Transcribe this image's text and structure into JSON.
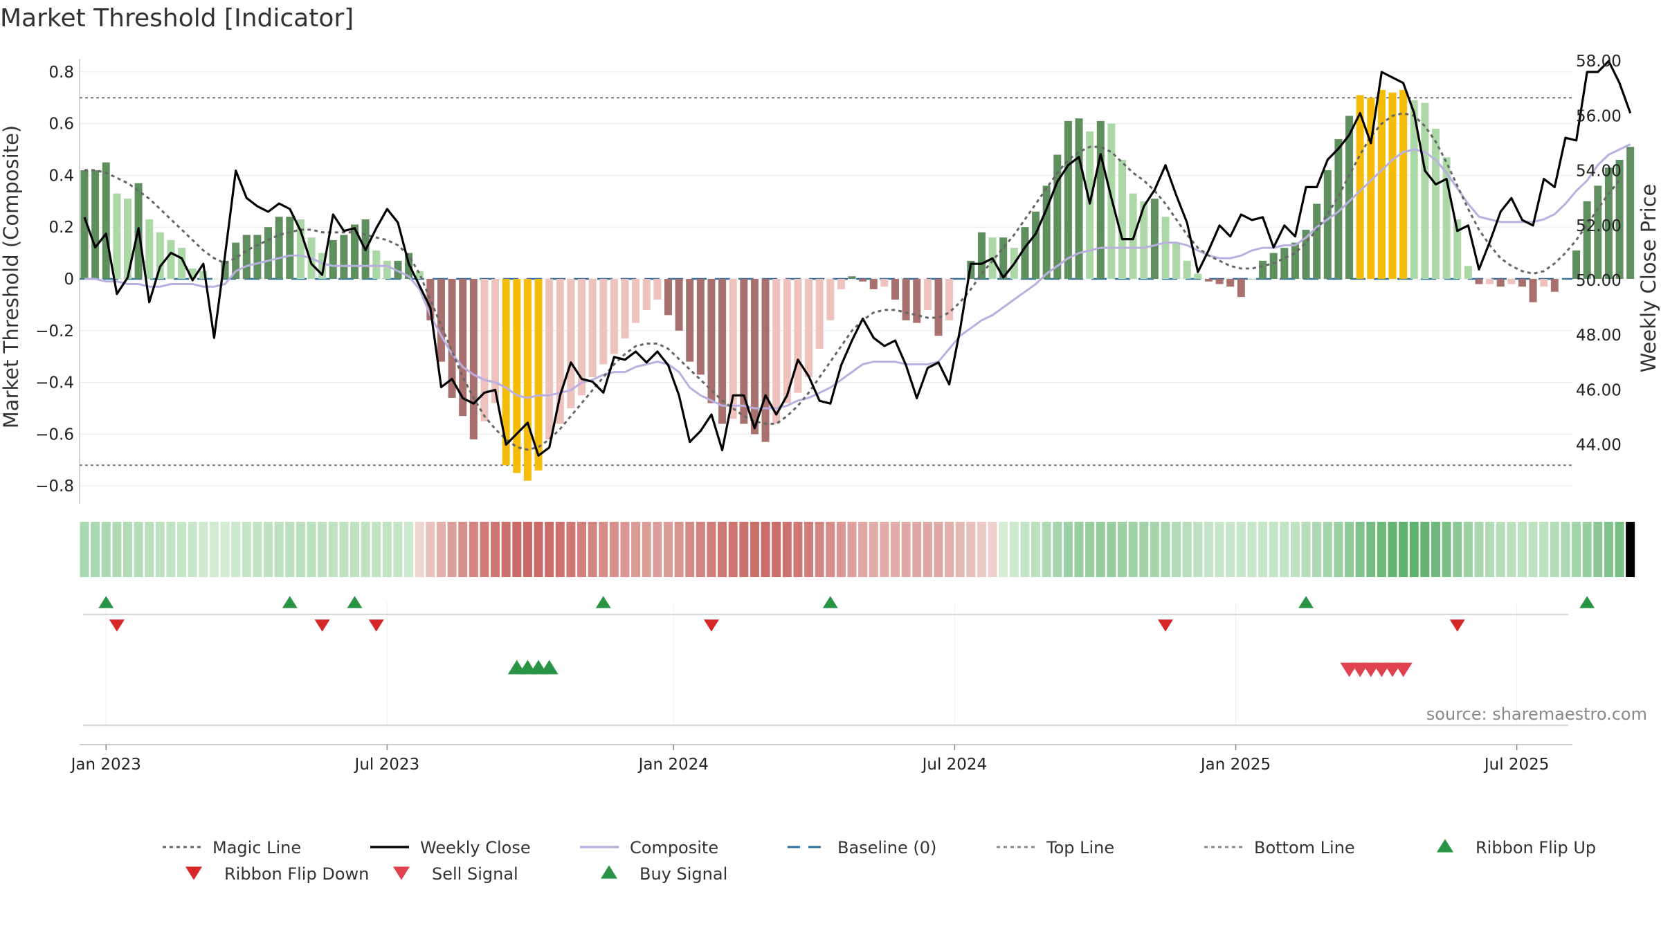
{
  "title": "Market Threshold [Indicator]",
  "source": "source: sharemaestro.com",
  "chart_data": {
    "type": "bar",
    "ylabel_left": "Market Threshold (Composite)",
    "ylabel_right": "Weekly Close Price",
    "ylim_left": [
      -0.86,
      0.86
    ],
    "ylim_right": [
      42.8,
      59.2
    ],
    "left_ticks": [
      0.8,
      0.6,
      0.4,
      0.2,
      0,
      -0.2,
      -0.4,
      -0.6,
      -0.8
    ],
    "left_tick_labels": [
      "0.8",
      "0.6",
      "0.4",
      "0.2",
      "0",
      "−0.2",
      "−0.4",
      "−0.6",
      "−0.8"
    ],
    "right_ticks": [
      58,
      56,
      54,
      52,
      50,
      48,
      46,
      44
    ],
    "right_tick_labels": [
      "58.00",
      "56.00",
      "54.00",
      "52.00",
      "50.00",
      "48.00",
      "46.00",
      "44.00"
    ],
    "x_ticks": [
      {
        "label": "Jan 2023",
        "week": 2
      },
      {
        "label": "Jul 2023",
        "week": 28
      },
      {
        "label": "Jan 2024",
        "week": 54.5
      },
      {
        "label": "Jul 2024",
        "week": 80.5
      },
      {
        "label": "Jan 2025",
        "week": 106.5
      },
      {
        "label": "Jul 2025",
        "week": 132.5
      }
    ],
    "top_line": 0.7,
    "bottom_line": -0.72,
    "composite_bars": [
      0.42,
      0.42,
      0.45,
      0.33,
      0.31,
      0.37,
      0.23,
      0.18,
      0.15,
      0.12,
      0.04,
      0.03,
      0,
      0.07,
      0.14,
      0.17,
      0.17,
      0.2,
      0.24,
      0.24,
      0.23,
      0.16,
      0.1,
      0.15,
      0.17,
      0.21,
      0.23,
      0.11,
      0.07,
      0.07,
      0.1,
      0.03,
      -0.16,
      -0.32,
      -0.46,
      -0.53,
      -0.62,
      -0.55,
      -0.48,
      -0.72,
      -0.75,
      -0.78,
      -0.74,
      -0.62,
      -0.56,
      -0.5,
      -0.45,
      -0.38,
      -0.33,
      -0.29,
      -0.23,
      -0.17,
      -0.12,
      -0.08,
      -0.14,
      -0.2,
      -0.32,
      -0.37,
      -0.48,
      -0.56,
      -0.54,
      -0.56,
      -0.6,
      -0.63,
      -0.56,
      -0.48,
      -0.44,
      -0.38,
      -0.27,
      -0.16,
      -0.04,
      0.01,
      -0.01,
      -0.04,
      -0.03,
      -0.08,
      -0.16,
      -0.17,
      -0.12,
      -0.22,
      -0.16,
      0,
      0.07,
      0.18,
      0.16,
      0.16,
      0.12,
      0.2,
      0.26,
      0.36,
      0.48,
      0.61,
      0.62,
      0.57,
      0.61,
      0.6,
      0.46,
      0.33,
      0.3,
      0.31,
      0.24,
      0.14,
      0.07,
      0.02,
      -0.01,
      -0.02,
      -0.03,
      -0.07,
      0,
      0.07,
      0.1,
      0.12,
      0.14,
      0.19,
      0.29,
      0.42,
      0.54,
      0.63,
      0.71,
      0.7,
      0.73,
      0.72,
      0.73,
      0.69,
      0.68,
      0.58,
      0.47,
      0.23,
      0.05,
      -0.02,
      -0.02,
      -0.03,
      -0.02,
      -0.03,
      -0.09,
      -0.03,
      -0.05,
      0,
      0.11,
      0.3,
      0.36,
      0.43,
      0.46,
      0.51
    ],
    "weekly_close": [
      52.3,
      51.2,
      51.7,
      49.5,
      50.1,
      51.9,
      49.2,
      50.5,
      51.0,
      50.8,
      50.0,
      50.6,
      47.9,
      50.9,
      54.0,
      53.0,
      52.7,
      52.5,
      52.8,
      52.6,
      51.8,
      50.6,
      50.2,
      52.4,
      51.8,
      51.9,
      51.1,
      51.9,
      52.6,
      52.1,
      50.6,
      49.8,
      49.0,
      46.1,
      46.4,
      45.7,
      45.5,
      45.9,
      46.0,
      44.0,
      44.4,
      44.8,
      43.6,
      43.9,
      45.8,
      47.0,
      46.4,
      46.3,
      45.9,
      47.2,
      47.1,
      47.4,
      47.0,
      47.4,
      46.9,
      45.8,
      44.1,
      44.5,
      45.1,
      43.8,
      45.8,
      45.8,
      44.6,
      45.8,
      45.1,
      45.8,
      47.1,
      46.5,
      45.6,
      45.5,
      46.9,
      47.8,
      48.6,
      47.9,
      47.6,
      47.8,
      46.9,
      45.7,
      46.8,
      47.0,
      46.2,
      48.2,
      50.6,
      50.6,
      50.8,
      50.1,
      50.6,
      51.2,
      51.7,
      52.6,
      53.6,
      54.2,
      54.5,
      52.8,
      54.6,
      53.0,
      51.5,
      51.5,
      52.7,
      53.3,
      54.2,
      53.1,
      52.1,
      50.3,
      51.1,
      52.0,
      51.6,
      52.4,
      52.2,
      52.3,
      51.2,
      52.0,
      51.6,
      53.4,
      53.4,
      54.4,
      54.8,
      55.3,
      56.1,
      55.0,
      57.6,
      57.4,
      57.2,
      56.1,
      54.0,
      53.5,
      53.7,
      51.8,
      52.0,
      50.4,
      51.4,
      52.5,
      53.0,
      52.2,
      52.0,
      53.7,
      53.4,
      55.2,
      55.1,
      57.6,
      57.6,
      58.0,
      57.2,
      56.1
    ],
    "composite_line": [
      0,
      0,
      -0.01,
      -0.01,
      -0.02,
      -0.02,
      -0.03,
      -0.03,
      -0.02,
      -0.02,
      -0.02,
      -0.03,
      -0.03,
      -0.02,
      0.03,
      0.05,
      0.06,
      0.07,
      0.08,
      0.09,
      0.09,
      0.08,
      0.06,
      0.05,
      0.05,
      0.05,
      0.05,
      0.05,
      0.05,
      0.03,
      0.01,
      -0.04,
      -0.14,
      -0.22,
      -0.29,
      -0.34,
      -0.37,
      -0.39,
      -0.4,
      -0.42,
      -0.45,
      -0.46,
      -0.45,
      -0.45,
      -0.44,
      -0.43,
      -0.4,
      -0.39,
      -0.37,
      -0.36,
      -0.36,
      -0.34,
      -0.33,
      -0.32,
      -0.33,
      -0.36,
      -0.42,
      -0.45,
      -0.47,
      -0.49,
      -0.49,
      -0.49,
      -0.5,
      -0.5,
      -0.5,
      -0.49,
      -0.47,
      -0.46,
      -0.44,
      -0.42,
      -0.39,
      -0.36,
      -0.33,
      -0.32,
      -0.32,
      -0.32,
      -0.33,
      -0.33,
      -0.33,
      -0.32,
      -0.27,
      -0.22,
      -0.19,
      -0.16,
      -0.14,
      -0.11,
      -0.08,
      -0.05,
      -0.02,
      0.02,
      0.05,
      0.08,
      0.1,
      0.11,
      0.12,
      0.12,
      0.12,
      0.12,
      0.12,
      0.13,
      0.14,
      0.14,
      0.13,
      0.11,
      0.09,
      0.08,
      0.08,
      0.09,
      0.11,
      0.12,
      0.12,
      0.13,
      0.13,
      0.16,
      0.2,
      0.23,
      0.26,
      0.3,
      0.34,
      0.38,
      0.42,
      0.46,
      0.49,
      0.5,
      0.49,
      0.46,
      0.41,
      0.35,
      0.29,
      0.24,
      0.23,
      0.22,
      0.22,
      0.22,
      0.22,
      0.23,
      0.25,
      0.29,
      0.34,
      0.38,
      0.44,
      0.48,
      0.5,
      0.52
    ],
    "magic_line": [
      0.42,
      0.42,
      0.41,
      0.39,
      0.37,
      0.34,
      0.31,
      0.27,
      0.23,
      0.19,
      0.15,
      0.11,
      0.08,
      0.06,
      0.08,
      0.11,
      0.13,
      0.15,
      0.17,
      0.18,
      0.19,
      0.19,
      0.18,
      0.18,
      0.18,
      0.18,
      0.17,
      0.16,
      0.15,
      0.13,
      0.09,
      0.02,
      -0.08,
      -0.18,
      -0.28,
      -0.38,
      -0.46,
      -0.53,
      -0.58,
      -0.62,
      -0.65,
      -0.66,
      -0.65,
      -0.62,
      -0.58,
      -0.53,
      -0.48,
      -0.43,
      -0.38,
      -0.33,
      -0.29,
      -0.26,
      -0.25,
      -0.25,
      -0.27,
      -0.31,
      -0.35,
      -0.39,
      -0.43,
      -0.47,
      -0.5,
      -0.53,
      -0.55,
      -0.56,
      -0.56,
      -0.53,
      -0.49,
      -0.44,
      -0.38,
      -0.32,
      -0.26,
      -0.2,
      -0.16,
      -0.13,
      -0.12,
      -0.12,
      -0.13,
      -0.14,
      -0.15,
      -0.15,
      -0.13,
      -0.09,
      -0.04,
      0.02,
      0.07,
      0.12,
      0.17,
      0.23,
      0.29,
      0.35,
      0.41,
      0.46,
      0.49,
      0.51,
      0.51,
      0.49,
      0.45,
      0.41,
      0.38,
      0.34,
      0.29,
      0.23,
      0.17,
      0.12,
      0.09,
      0.07,
      0.05,
      0.04,
      0.04,
      0.05,
      0.06,
      0.08,
      0.1,
      0.14,
      0.19,
      0.25,
      0.32,
      0.4,
      0.48,
      0.55,
      0.6,
      0.63,
      0.64,
      0.63,
      0.59,
      0.53,
      0.45,
      0.36,
      0.27,
      0.19,
      0.13,
      0.08,
      0.05,
      0.03,
      0.02,
      0.03,
      0.06,
      0.1,
      0.15,
      0.21,
      0.27,
      0.33,
      0.38
    ],
    "ribbon_flip_up_weeks": [
      2,
      19,
      25,
      48,
      69,
      113,
      139
    ],
    "ribbon_flip_down_weeks": [
      3,
      22,
      27,
      58,
      100,
      127
    ],
    "buy_signal_weeks": [
      40,
      41,
      42,
      43
    ],
    "sell_signal_weeks": [
      117,
      118,
      119,
      120,
      121,
      122
    ]
  },
  "legend": {
    "items": [
      {
        "label": "Magic Line",
        "symbol": "dotted",
        "color": "#666666"
      },
      {
        "label": "Weekly Close",
        "symbol": "solid",
        "color": "#000000"
      },
      {
        "label": "Composite",
        "symbol": "solid",
        "color": "#b9b0e0"
      },
      {
        "label": "Baseline (0)",
        "symbol": "dashed",
        "color": "#2f6fa0"
      },
      {
        "label": "Top Line",
        "symbol": "dotted",
        "color": "#888888"
      },
      {
        "label": "Bottom Line",
        "symbol": "dotted",
        "color": "#888888"
      },
      {
        "label": "Ribbon Flip Up",
        "symbol": "triangle-up",
        "color": "#2a9445"
      },
      {
        "label": "Ribbon Flip Down",
        "symbol": "triangle-down",
        "color": "#d62728"
      },
      {
        "label": "Sell Signal",
        "symbol": "triangle-down",
        "color": "#e0434f"
      },
      {
        "label": "Buy Signal",
        "symbol": "triangle-up",
        "color": "#2a9445"
      }
    ]
  },
  "colors": {
    "bar_pos_strong": "#5f8f5f",
    "bar_pos_weak": "#acd8a7",
    "bar_neg_strong": "#a9716e",
    "bar_neg_weak": "#eec2bd",
    "bar_extreme": "#f5bd0a",
    "grid": "#e8e8e8"
  }
}
